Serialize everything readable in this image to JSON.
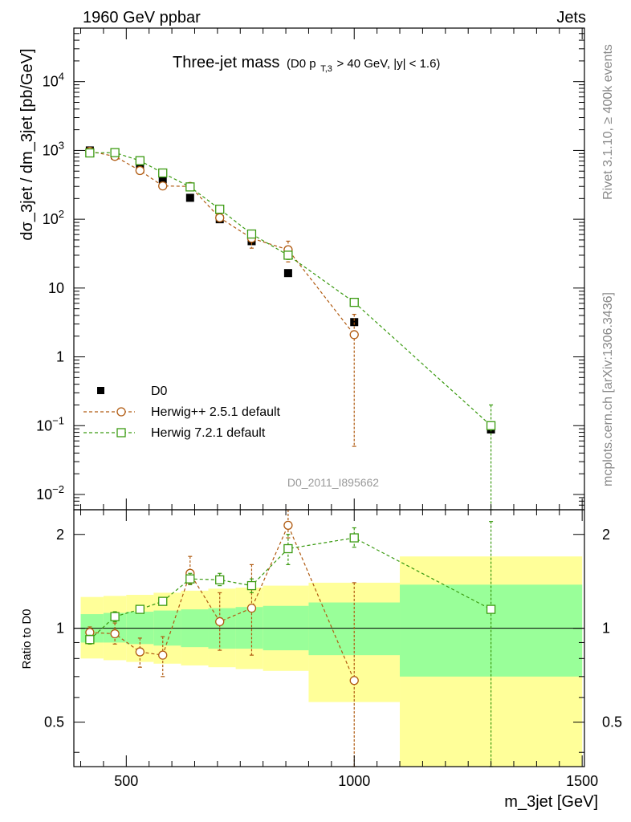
{
  "header": {
    "left": "1960 GeV ppbar",
    "right": "Jets",
    "title_main": "Three-jet mass",
    "title_sub_pre": "(D0 p",
    "title_sub_sub": "T,3",
    "title_sub_post": " > 40 GeV, |y| < 1.6)"
  },
  "side_labels": {
    "rivet": "Rivet 3.1.10, ≥ 400k events",
    "mcplots": "mcplots.cern.ch [arXiv:1306.3436]"
  },
  "analysis_id": "D0_2011_I895662",
  "chart_data": [
    {
      "type": "scatter",
      "panel": "main",
      "title": "Three-jet mass",
      "ylabel": "dσ_3jet / dm_3jet [pb/GeV]",
      "xlim": [
        385,
        1505
      ],
      "ylim": [
        0.006,
        60000
      ],
      "yscale": "log",
      "ytick_labels": [
        {
          "value": 10000,
          "label": "10",
          "exp": "4"
        },
        {
          "value": 1000,
          "label": "10",
          "exp": "3"
        },
        {
          "value": 100,
          "label": "10",
          "exp": "2"
        },
        {
          "value": 10,
          "label": "10",
          "exp": ""
        },
        {
          "value": 1,
          "label": "1",
          "exp": ""
        },
        {
          "value": 0.1,
          "label": "10",
          "exp": "−1"
        },
        {
          "value": 0.01,
          "label": "10",
          "exp": "−2"
        }
      ],
      "legend": [
        "D0",
        "Herwig++ 2.5.1 default",
        "Herwig 7.2.1 default"
      ],
      "series": [
        {
          "name": "D0",
          "color": "#000000",
          "marker": "filled-square",
          "x": [
            420,
            475,
            530,
            580,
            640,
            705,
            775,
            855,
            1000,
            1300
          ],
          "y": [
            1000,
            850,
            620,
            380,
            205,
            100,
            48,
            16.5,
            3.2,
            0.088
          ]
        },
        {
          "name": "Herwig++ 2.5.1 default",
          "color": "#b05a10",
          "marker": "open-circle",
          "x": [
            420,
            475,
            530,
            580,
            640,
            705,
            775,
            855,
            1000
          ],
          "y": [
            970,
            820,
            510,
            305,
            300,
            105,
            53,
            36,
            2.1
          ],
          "yerr": [
            20,
            20,
            20,
            15,
            15,
            12,
            15,
            12,
            2.05
          ]
        },
        {
          "name": "Herwig 7.2.1 default",
          "color": "#3a9a10",
          "marker": "open-square",
          "x": [
            420,
            475,
            530,
            580,
            640,
            705,
            775,
            855,
            1000,
            1300
          ],
          "y": [
            920,
            930,
            710,
            470,
            295,
            140,
            61,
            30,
            6.2,
            0.1
          ],
          "yerr": [
            15,
            15,
            15,
            15,
            12,
            10,
            6,
            4,
            0.6,
            0.1
          ]
        }
      ]
    },
    {
      "type": "scatter",
      "panel": "ratio",
      "ylabel": "Ratio to D0",
      "xlabel": "m_3jet [GeV]",
      "xlim": [
        385,
        1505
      ],
      "ylim": [
        0.36,
        2.4
      ],
      "yscale": "log",
      "yticks": [
        0.5,
        1,
        2
      ],
      "ytick_labels": [
        "0.5",
        "1",
        "2"
      ],
      "xticks": [
        500,
        1000,
        1500
      ],
      "xtick_labels": [
        "500",
        "1000",
        "1500"
      ],
      "bands": [
        {
          "x0": 400,
          "x1": 450,
          "stat_lo": 0.9,
          "stat_hi": 1.11,
          "tot_lo": 0.8,
          "tot_hi": 1.26
        },
        {
          "x0": 450,
          "x1": 500,
          "stat_lo": 0.9,
          "stat_hi": 1.12,
          "tot_lo": 0.79,
          "tot_hi": 1.27
        },
        {
          "x0": 500,
          "x1": 560,
          "stat_lo": 0.89,
          "stat_hi": 1.13,
          "tot_lo": 0.78,
          "tot_hi": 1.28
        },
        {
          "x0": 560,
          "x1": 620,
          "stat_lo": 0.88,
          "stat_hi": 1.14,
          "tot_lo": 0.77,
          "tot_hi": 1.3
        },
        {
          "x0": 620,
          "x1": 680,
          "stat_lo": 0.87,
          "stat_hi": 1.15,
          "tot_lo": 0.76,
          "tot_hi": 1.32
        },
        {
          "x0": 680,
          "x1": 740,
          "stat_lo": 0.86,
          "stat_hi": 1.16,
          "tot_lo": 0.75,
          "tot_hi": 1.34
        },
        {
          "x0": 740,
          "x1": 800,
          "stat_lo": 0.86,
          "stat_hi": 1.17,
          "tot_lo": 0.74,
          "tot_hi": 1.35
        },
        {
          "x0": 800,
          "x1": 900,
          "stat_lo": 0.85,
          "stat_hi": 1.18,
          "tot_lo": 0.73,
          "tot_hi": 1.37
        },
        {
          "x0": 900,
          "x1": 1100,
          "stat_lo": 0.82,
          "stat_hi": 1.21,
          "tot_lo": 0.58,
          "tot_hi": 1.4
        },
        {
          "x0": 1100,
          "x1": 1500,
          "stat_lo": 0.7,
          "stat_hi": 1.38,
          "tot_lo": 0.36,
          "tot_hi": 1.7
        }
      ],
      "series": [
        {
          "name": "Herwig++ 2.5.1 default",
          "color": "#b05a10",
          "marker": "open-circle",
          "x": [
            420,
            475,
            530,
            580,
            640,
            705,
            775,
            855,
            1000
          ],
          "y": [
            0.97,
            0.96,
            0.84,
            0.82,
            1.5,
            1.05,
            1.16,
            2.14,
            0.68
          ],
          "ylo": [
            0.93,
            0.89,
            0.75,
            0.7,
            1.39,
            0.85,
            0.82,
            1.95,
            0.36
          ],
          "yhi": [
            1.01,
            1.04,
            0.93,
            0.94,
            1.7,
            1.3,
            1.6,
            2.4,
            1.4
          ]
        },
        {
          "name": "Herwig 7.2.1 default",
          "color": "#3a9a10",
          "marker": "open-square",
          "x": [
            420,
            475,
            530,
            580,
            640,
            705,
            775,
            855,
            1000,
            1300
          ],
          "y": [
            0.92,
            1.09,
            1.15,
            1.22,
            1.44,
            1.43,
            1.37,
            1.8,
            1.95,
            1.15
          ],
          "ylo": [
            0.89,
            1.05,
            1.12,
            1.19,
            1.38,
            1.37,
            1.3,
            1.6,
            1.82,
            0.36
          ],
          "yhi": [
            0.95,
            1.13,
            1.18,
            1.25,
            1.5,
            1.5,
            1.44,
            2.0,
            2.1,
            2.2
          ]
        }
      ]
    }
  ]
}
